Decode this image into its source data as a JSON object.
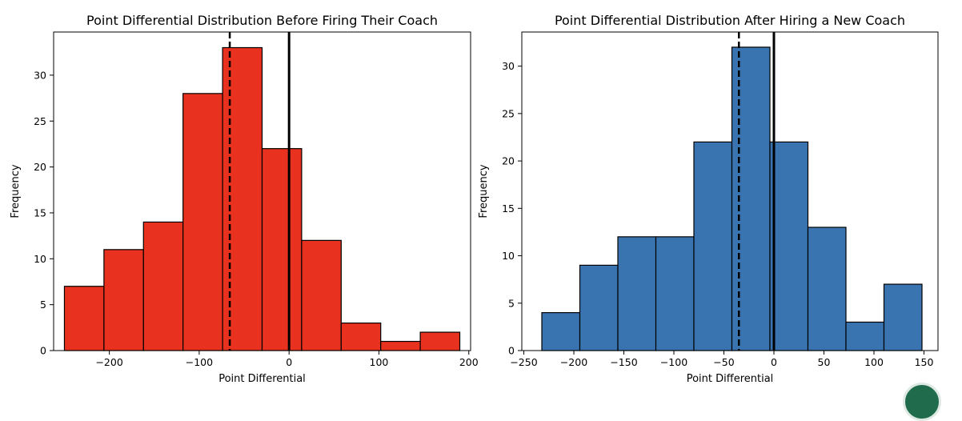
{
  "chart_data": [
    {
      "type": "bar",
      "subtype": "histogram",
      "title": "Point Differential Distribution Before Firing Their Coach",
      "xlabel": "Point Differential",
      "ylabel": "Frequency",
      "bar_color": "#e8321f",
      "edge_color": "#000000",
      "bin_edges": [
        -250,
        -206,
        -162,
        -118,
        -74,
        -30,
        14,
        58,
        102,
        146,
        190
      ],
      "values": [
        7,
        11,
        14,
        28,
        33,
        22,
        12,
        3,
        1,
        2
      ],
      "xlim": [
        -262,
        202
      ],
      "ylim": [
        0,
        34.7
      ],
      "xticks": [
        -200,
        -100,
        0,
        100,
        200
      ],
      "xtick_labels": [
        "−200",
        "−100",
        "0",
        "100",
        "200"
      ],
      "yticks": [
        0,
        5,
        10,
        15,
        20,
        25,
        30
      ],
      "ytick_labels": [
        "0",
        "5",
        "10",
        "15",
        "20",
        "25",
        "30"
      ],
      "vlines": [
        {
          "x": -66,
          "style": "dashed",
          "color": "#000000"
        },
        {
          "x": 0,
          "style": "solid",
          "color": "#000000"
        }
      ],
      "grid": false
    },
    {
      "type": "bar",
      "subtype": "histogram",
      "title": "Point Differential Distribution After Hiring a New Coach",
      "xlabel": "Point Differential",
      "ylabel": "Frequency",
      "bar_color": "#3a74b0",
      "edge_color": "#000000",
      "bin_edges": [
        -232,
        -194,
        -156,
        -118,
        -80,
        -42,
        -4,
        34,
        72,
        110,
        148
      ],
      "values": [
        4,
        9,
        12,
        12,
        22,
        32,
        22,
        13,
        3,
        7
      ],
      "xlim": [
        -252,
        164
      ],
      "ylim": [
        0,
        33.6
      ],
      "xticks": [
        -250,
        -200,
        -150,
        -100,
        -50,
        0,
        50,
        100,
        150
      ],
      "xtick_labels": [
        "−250",
        "−200",
        "−150",
        "−100",
        "−50",
        "0",
        "50",
        "100",
        "150"
      ],
      "yticks": [
        0,
        5,
        10,
        15,
        20,
        25,
        30
      ],
      "ytick_labels": [
        "0",
        "5",
        "10",
        "15",
        "20",
        "25",
        "30"
      ],
      "vlines": [
        {
          "x": -35,
          "style": "dashed",
          "color": "#000000"
        },
        {
          "x": 0,
          "style": "solid",
          "color": "#000000"
        }
      ],
      "grid": false
    }
  ]
}
